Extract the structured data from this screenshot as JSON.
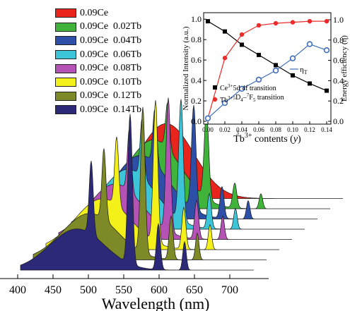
{
  "chart_data": [
    {
      "type": "area",
      "title": "",
      "xlabel": "Wavelength (nm)",
      "ylabel": "",
      "x_ticks": [
        400,
        450,
        500,
        550,
        600,
        650,
        700
      ],
      "xlim": [
        390,
        720
      ],
      "legend_position": "top-left",
      "series": [
        {
          "name": "0.09Ce",
          "color": "#e8241c",
          "tb": 0.0,
          "broad": 1.0,
          "lines": [
            0.0,
            0.0,
            0.0,
            0.0
          ]
        },
        {
          "name": "0.09Ce  0.02Tb",
          "color": "#3fb33a",
          "tb": 0.02,
          "broad": 0.92,
          "lines": [
            0.55,
            1.05,
            0.3,
            0.18
          ]
        },
        {
          "name": "0.09Ce  0.04Tb",
          "color": "#2e4fa8",
          "tb": 0.04,
          "broad": 0.85,
          "lines": [
            0.65,
            1.25,
            0.38,
            0.22
          ]
        },
        {
          "name": "0.09Ce  0.06Tb",
          "color": "#3cc4d8",
          "tb": 0.06,
          "broad": 0.8,
          "lines": [
            0.7,
            1.45,
            0.42,
            0.25
          ]
        },
        {
          "name": "0.09Ce  0.08Tb",
          "color": "#b552b5",
          "tb": 0.08,
          "broad": 0.74,
          "lines": [
            0.75,
            1.6,
            0.46,
            0.28
          ]
        },
        {
          "name": "0.09Ce  0.10Tb",
          "color": "#f4f01a",
          "tb": 0.1,
          "broad": 0.68,
          "lines": [
            0.82,
            1.7,
            0.5,
            0.3
          ]
        },
        {
          "name": "0.09Ce  0.12Tb",
          "color": "#7e8a28",
          "tb": 0.12,
          "broad": 0.62,
          "lines": [
            0.85,
            1.75,
            0.52,
            0.32
          ]
        },
        {
          "name": "0.09Ce  0.14Tb",
          "color": "#2c2a78",
          "tb": 0.14,
          "broad": 0.55,
          "lines": [
            0.88,
            1.8,
            0.55,
            0.34
          ]
        }
      ]
    },
    {
      "type": "line",
      "title": "",
      "xlabel": "Tb",
      "xlabel_sup": "3+",
      "xlabel_rest": " contents (",
      "xlabel_var": "y",
      "xlabel_end": ")",
      "ylabel_left": "Normalized  Intensity (a.u.)",
      "ylabel_right": "Energy efficiency (η)",
      "x_ticks": [
        "0.00",
        "0.02",
        "0.04",
        "0.06",
        "0.08",
        "0.10",
        "0.12",
        "0.14"
      ],
      "x_range": [
        0.0,
        0.14
      ],
      "y_left_ticks": [
        "0.0",
        "0.2",
        "0.4",
        "0.6",
        "0.8",
        "1.0"
      ],
      "y_left_range": [
        0.0,
        1.05
      ],
      "y_right_ticks": [
        "0.0",
        "0.2",
        "0.4",
        "0.6",
        "0.8",
        "1.0"
      ],
      "y_right_range": [
        0.0,
        1.0
      ],
      "stray_text": "3",
      "eta_label": "η",
      "eta_sub": "T",
      "series": [
        {
          "name": "Ce3+ 5d–4f transition",
          "label_a": "Ce",
          "label_sup": "3+",
          "label_b": "5d  4f transition",
          "color": "#000000",
          "marker": "square",
          "axis": "left",
          "x": [
            0.0,
            0.02,
            0.04,
            0.06,
            0.08,
            0.1,
            0.12,
            0.14
          ],
          "y": [
            0.98,
            0.88,
            0.75,
            0.65,
            0.55,
            0.45,
            0.37,
            0.3
          ]
        },
        {
          "name": "Tb3+ 5D4–7F5 transition",
          "label_a": "Tb",
          "label_sup": "3+",
          "label_b": "5",
          "label_sub": "D",
          "label_c": "4",
          "label_d": "–",
          "label_e": "7",
          "label_f": "F",
          "label_g": "5",
          "label_h": " transition",
          "color": "#ee2b2b",
          "marker": "circle",
          "axis": "left",
          "x": [
            0.0,
            0.02,
            0.04,
            0.06,
            0.08,
            0.1,
            0.12,
            0.14
          ],
          "y": [
            0.03,
            0.62,
            0.85,
            0.94,
            0.96,
            0.97,
            0.98,
            0.98
          ]
        },
        {
          "name": "ηT",
          "color": "#3e6db8",
          "marker": "open-circle",
          "axis": "right",
          "x": [
            0.0,
            0.02,
            0.04,
            0.06,
            0.08,
            0.1,
            0.12,
            0.14
          ],
          "y": [
            0.03,
            0.18,
            0.32,
            0.41,
            0.5,
            0.62,
            0.76,
            0.7
          ]
        }
      ]
    }
  ]
}
